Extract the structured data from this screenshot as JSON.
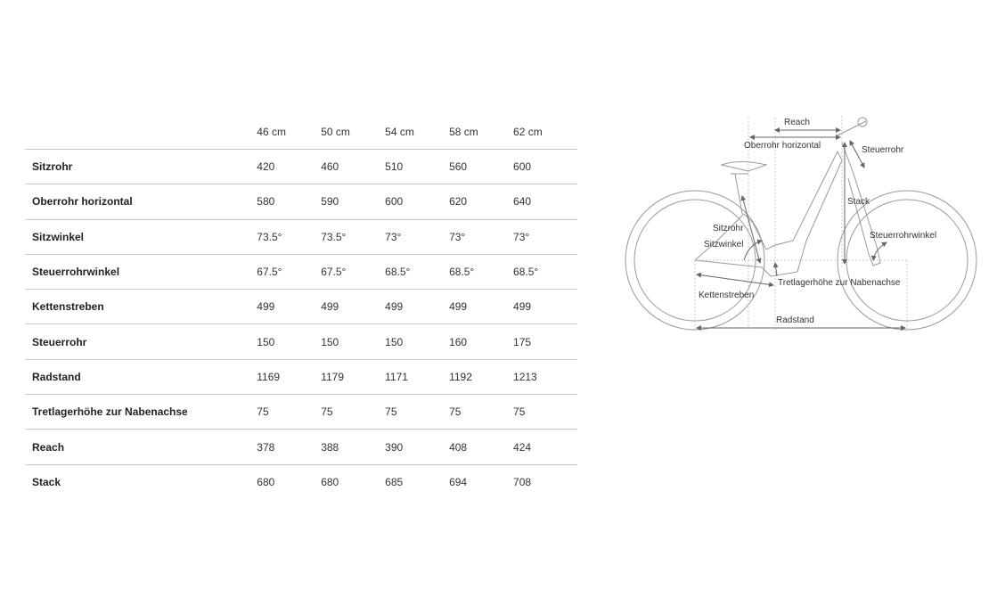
{
  "table": {
    "sizes": [
      "46 cm",
      "50 cm",
      "54 cm",
      "58 cm",
      "62 cm"
    ],
    "rows": [
      {
        "label": "Sitzrohr",
        "values": [
          "420",
          "460",
          "510",
          "560",
          "600"
        ]
      },
      {
        "label": "Oberrohr horizontal",
        "values": [
          "580",
          "590",
          "600",
          "620",
          "640"
        ]
      },
      {
        "label": "Sitzwinkel",
        "values": [
          "73.5°",
          "73.5°",
          "73°",
          "73°",
          "73°"
        ]
      },
      {
        "label": "Steuerrohrwinkel",
        "values": [
          "67.5°",
          "67.5°",
          "68.5°",
          "68.5°",
          "68.5°"
        ]
      },
      {
        "label": "Kettenstreben",
        "values": [
          "499",
          "499",
          "499",
          "499",
          "499"
        ]
      },
      {
        "label": "Steuerrohr",
        "values": [
          "150",
          "150",
          "150",
          "160",
          "175"
        ]
      },
      {
        "label": "Radstand",
        "values": [
          "1169",
          "1179",
          "1171",
          "1192",
          "1213"
        ]
      },
      {
        "label": "Tretlagerhöhe zur Nabenachse",
        "values": [
          "75",
          "75",
          "75",
          "75",
          "75"
        ]
      },
      {
        "label": "Reach",
        "values": [
          "378",
          "388",
          "390",
          "408",
          "424"
        ]
      },
      {
        "label": "Stack",
        "values": [
          "680",
          "680",
          "685",
          "694",
          "708"
        ]
      }
    ]
  },
  "diagram": {
    "labels": {
      "reach": "Reach",
      "oberrohr": "Oberrohr horizontal",
      "steuerrohr": "Steuerrohr",
      "stack": "Stack",
      "sitzrohr": "Sitzrohr",
      "sitzwinkel": "Sitzwinkel",
      "steuerrohrwinkel": "Steuerrohrwinkel",
      "tretlager": "Tretlagerhöhe zur Nabenachse",
      "kettenstreben": "Kettenstreben",
      "radstand": "Radstand"
    },
    "line_color": "#999999",
    "arrow_color": "#666666"
  }
}
